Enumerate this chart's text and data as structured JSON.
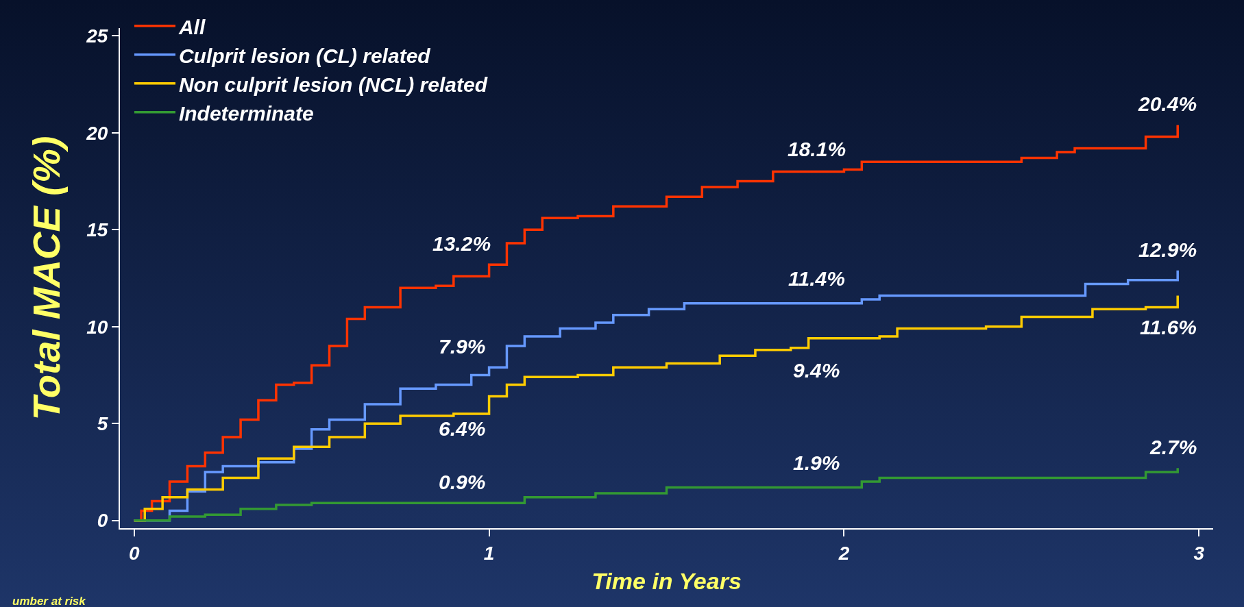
{
  "chart_data": {
    "type": "step",
    "xlabel": "Time in Years",
    "ylabel": "Total MACE (%)",
    "xlim": [
      -0.04,
      3.04
    ],
    "xticks": [
      0,
      1,
      2,
      3
    ],
    "ylim": [
      -0.4,
      25.4
    ],
    "yticks": [
      0,
      5,
      10,
      15,
      20,
      25
    ],
    "grid": false,
    "legend": "top left",
    "marker": "none",
    "line_style": "solid",
    "series": [
      {
        "name": "All",
        "color": "#ff3300",
        "x": [
          0,
          0.02,
          0.05,
          0.1,
          0.15,
          0.2,
          0.25,
          0.3,
          0.35,
          0.4,
          0.45,
          0.5,
          0.55,
          0.6,
          0.65,
          0.75,
          0.85,
          0.9,
          1.0,
          1.05,
          1.1,
          1.15,
          1.25,
          1.35,
          1.5,
          1.6,
          1.7,
          1.8,
          2.0,
          2.05,
          2.25,
          2.5,
          2.6,
          2.65,
          2.8,
          2.85,
          2.94
        ],
        "values": [
          0,
          0.5,
          1.0,
          2.0,
          2.8,
          3.5,
          4.3,
          5.2,
          6.2,
          7.0,
          7.1,
          8.0,
          9.0,
          10.4,
          11.0,
          12.0,
          12.1,
          12.6,
          13.2,
          14.3,
          15.0,
          15.6,
          15.7,
          16.2,
          16.7,
          17.2,
          17.5,
          18.0,
          18.1,
          18.5,
          18.5,
          18.7,
          19.0,
          19.2,
          19.2,
          19.8,
          20.4
        ]
      },
      {
        "name": "Culprit lesion (CL) related",
        "color": "#6699ff",
        "x": [
          0,
          0.1,
          0.15,
          0.2,
          0.25,
          0.35,
          0.45,
          0.5,
          0.55,
          0.65,
          0.75,
          0.85,
          0.95,
          1.0,
          1.05,
          1.1,
          1.2,
          1.3,
          1.35,
          1.45,
          1.55,
          2.0,
          2.05,
          2.1,
          2.65,
          2.68,
          2.8,
          2.94
        ],
        "values": [
          0,
          0.5,
          1.5,
          2.5,
          2.8,
          3.0,
          3.7,
          4.7,
          5.2,
          6.0,
          6.8,
          7.0,
          7.5,
          7.9,
          9.0,
          9.5,
          9.9,
          10.2,
          10.6,
          10.9,
          11.2,
          11.2,
          11.4,
          11.6,
          11.6,
          12.2,
          12.4,
          12.9
        ]
      },
      {
        "name": "Non culprit lesion (NCL) related",
        "color": "#ffcc00",
        "x": [
          0,
          0.03,
          0.08,
          0.15,
          0.25,
          0.35,
          0.45,
          0.55,
          0.65,
          0.75,
          0.9,
          1.0,
          1.05,
          1.1,
          1.25,
          1.35,
          1.5,
          1.65,
          1.75,
          1.85,
          1.9,
          2.0,
          2.1,
          2.15,
          2.4,
          2.5,
          2.7,
          2.85,
          2.94
        ],
        "values": [
          0,
          0.6,
          1.2,
          1.6,
          2.2,
          3.2,
          3.8,
          4.3,
          5.0,
          5.4,
          5.5,
          6.4,
          7.0,
          7.4,
          7.5,
          7.9,
          8.1,
          8.5,
          8.8,
          8.9,
          9.4,
          9.4,
          9.5,
          9.9,
          10.0,
          10.5,
          10.9,
          11.0,
          11.6
        ]
      },
      {
        "name": "Indeterminate",
        "color": "#339933",
        "x": [
          0,
          0.1,
          0.2,
          0.3,
          0.4,
          0.5,
          1.0,
          1.1,
          1.3,
          1.5,
          2.0,
          2.05,
          2.1,
          2.8,
          2.85,
          2.94
        ],
        "values": [
          0,
          0.2,
          0.3,
          0.6,
          0.8,
          0.9,
          0.9,
          1.2,
          1.4,
          1.7,
          1.7,
          2.0,
          2.2,
          2.2,
          2.5,
          2.7
        ]
      }
    ],
    "annotations": [
      {
        "text": "13.2%",
        "x": 1,
        "y": 13.2
      },
      {
        "text": "18.1%",
        "x": 2,
        "y": 18.1
      },
      {
        "text": "20.4%",
        "x": 2.94,
        "y": 20.4
      },
      {
        "text": "7.9%",
        "x": 1,
        "y": 7.9
      },
      {
        "text": "11.4%",
        "x": 2,
        "y": 11.4
      },
      {
        "text": "12.9%",
        "x": 2.94,
        "y": 12.9
      },
      {
        "text": "6.4%",
        "x": 1,
        "y": 6.4
      },
      {
        "text": "9.4%",
        "x": 2,
        "y": 9.4
      },
      {
        "text": "11.6%",
        "x": 2.94,
        "y": 11.6
      },
      {
        "text": "0.9%",
        "x": 1,
        "y": 0.9
      },
      {
        "text": "1.9%",
        "x": 2,
        "y": 1.9
      },
      {
        "text": "2.7%",
        "x": 2.94,
        "y": 2.7
      },
      "umber at risk"
    ]
  }
}
